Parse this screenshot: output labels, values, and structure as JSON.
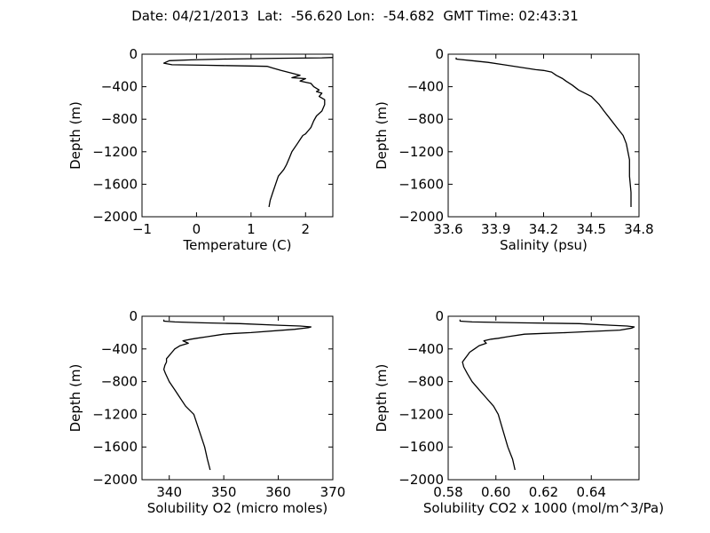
{
  "figure": {
    "title": "Date: 04/21/2013  Lat:  -56.620 Lon:  -54.682  GMT Time: 02:43:31"
  },
  "chart_data": [
    {
      "type": "line",
      "xlabel": "Temperature (C)",
      "ylabel": "Depth (m)",
      "xlim": [
        -1,
        2.5
      ],
      "ylim": [
        -2000,
        0
      ],
      "xticks": [
        -1,
        0,
        1,
        2
      ],
      "xtick_labels": [
        "−1",
        "0",
        "1",
        "2"
      ],
      "yticks": [
        0,
        -400,
        -800,
        -1200,
        -1600,
        -2000
      ],
      "ytick_labels": [
        "0",
        "−400",
        "−800",
        "−1200",
        "−1600",
        "−2000"
      ],
      "grid": false,
      "series": [
        {
          "x": [
            2.5,
            2.3,
            1.5,
            0.5,
            -0.1,
            -0.5,
            -0.6,
            -0.45,
            0.1,
            0.5,
            1.0,
            1.3,
            1.4,
            1.55,
            1.9,
            1.75,
            2.0,
            1.9,
            2.1,
            2.15,
            2.25,
            2.2,
            2.3,
            2.25,
            2.35,
            2.35,
            2.3,
            2.2,
            2.15,
            2.1,
            2.05,
            2.0,
            1.95,
            1.9,
            1.85,
            1.75,
            1.7,
            1.65,
            1.6,
            1.5,
            1.45,
            1.4,
            1.35,
            1.33
          ],
          "y": [
            -40,
            -45,
            -50,
            -60,
            -70,
            -80,
            -110,
            -130,
            -135,
            -140,
            -145,
            -150,
            -170,
            -200,
            -260,
            -290,
            -300,
            -330,
            -360,
            -400,
            -440,
            -460,
            -480,
            -520,
            -560,
            -620,
            -700,
            -760,
            -820,
            -900,
            -940,
            -980,
            -1000,
            -1050,
            -1100,
            -1200,
            -1280,
            -1360,
            -1420,
            -1500,
            -1600,
            -1700,
            -1800,
            -1880
          ]
        }
      ]
    },
    {
      "type": "line",
      "xlabel": "Salinity (psu)",
      "ylabel": "Depth (m)",
      "xlim": [
        33.6,
        34.8
      ],
      "ylim": [
        -2000,
        0
      ],
      "xticks": [
        33.6,
        33.9,
        34.2,
        34.5,
        34.8
      ],
      "xtick_labels": [
        "33.6",
        "33.9",
        "34.2",
        "34.5",
        "34.8"
      ],
      "yticks": [
        0,
        -400,
        -800,
        -1200,
        -1600,
        -2000
      ],
      "ytick_labels": [
        "0",
        "−400",
        "−800",
        "−1200",
        "−1600",
        "−2000"
      ],
      "grid": false,
      "series": [
        {
          "x": [
            33.65,
            33.65,
            33.75,
            33.85,
            33.95,
            34.05,
            34.15,
            34.2,
            34.25,
            34.28,
            34.32,
            34.34,
            34.38,
            34.42,
            34.46,
            34.5,
            34.52,
            34.55,
            34.58,
            34.62,
            34.66,
            34.7,
            34.72,
            34.73,
            34.74,
            34.74,
            34.75,
            34.75
          ],
          "y": [
            -40,
            -60,
            -80,
            -100,
            -130,
            -160,
            -190,
            -200,
            -220,
            -260,
            -300,
            -330,
            -380,
            -440,
            -480,
            -520,
            -560,
            -620,
            -700,
            -800,
            -900,
            -1000,
            -1100,
            -1200,
            -1300,
            -1500,
            -1700,
            -1880
          ]
        }
      ]
    },
    {
      "type": "line",
      "xlabel": "Solubility O2 (micro moles)",
      "ylabel": "Depth (m)",
      "xlim": [
        335,
        370
      ],
      "ylim": [
        -2000,
        0
      ],
      "xticks": [
        340,
        350,
        360,
        370
      ],
      "xtick_labels": [
        "340",
        "350",
        "360",
        "370"
      ],
      "yticks": [
        0,
        -400,
        -800,
        -1200,
        -1600,
        -2000
      ],
      "ytick_labels": [
        "0",
        "−400",
        "−800",
        "−1200",
        "−1600",
        "−2000"
      ],
      "grid": false,
      "series": [
        {
          "x": [
            339,
            339,
            341,
            346,
            353,
            360,
            364,
            366,
            365.5,
            363,
            355,
            352,
            350,
            347,
            345,
            344,
            342.5,
            343.5,
            342,
            341,
            340.5,
            340,
            339.5,
            339.5,
            339.2,
            339,
            339.3,
            340,
            341,
            342,
            343,
            344.5,
            345.5,
            346.5,
            347,
            347.5
          ],
          "y": [
            -40,
            -60,
            -70,
            -80,
            -90,
            -110,
            -120,
            -130,
            -140,
            -160,
            -200,
            -210,
            -220,
            -250,
            -270,
            -280,
            -300,
            -330,
            -360,
            -400,
            -440,
            -480,
            -520,
            -560,
            -600,
            -650,
            -700,
            -800,
            -900,
            -1000,
            -1100,
            -1200,
            -1400,
            -1600,
            -1750,
            -1880
          ]
        }
      ]
    },
    {
      "type": "line",
      "xlabel": "Solubility CO2 x 1000 (mol/m^3/Pa)",
      "ylabel": "Depth (m)",
      "xlim": [
        0.58,
        0.66
      ],
      "ylim": [
        -2000,
        0
      ],
      "xticks": [
        0.58,
        0.6,
        0.62,
        0.64
      ],
      "xtick_labels": [
        "0.58",
        "0.60",
        "0.62",
        "0.64"
      ],
      "yticks": [
        0,
        -400,
        -800,
        -1200,
        -1600,
        -2000
      ],
      "ytick_labels": [
        "0",
        "−400",
        "−800",
        "−1200",
        "−1600",
        "−2000"
      ],
      "grid": false,
      "series": [
        {
          "x": [
            0.585,
            0.585,
            0.59,
            0.61,
            0.635,
            0.648,
            0.655,
            0.658,
            0.657,
            0.652,
            0.63,
            0.62,
            0.612,
            0.605,
            0.601,
            0.598,
            0.595,
            0.596,
            0.593,
            0.591,
            0.589,
            0.588,
            0.587,
            0.586,
            0.5865,
            0.588,
            0.59,
            0.593,
            0.596,
            0.599,
            0.601,
            0.603,
            0.605,
            0.607,
            0.608
          ],
          "y": [
            -40,
            -60,
            -70,
            -80,
            -90,
            -110,
            -120,
            -130,
            -145,
            -170,
            -200,
            -210,
            -220,
            -250,
            -270,
            -280,
            -300,
            -330,
            -360,
            -400,
            -440,
            -480,
            -520,
            -560,
            -620,
            -700,
            -800,
            -900,
            -1000,
            -1100,
            -1200,
            -1400,
            -1600,
            -1750,
            -1880
          ]
        }
      ]
    }
  ]
}
